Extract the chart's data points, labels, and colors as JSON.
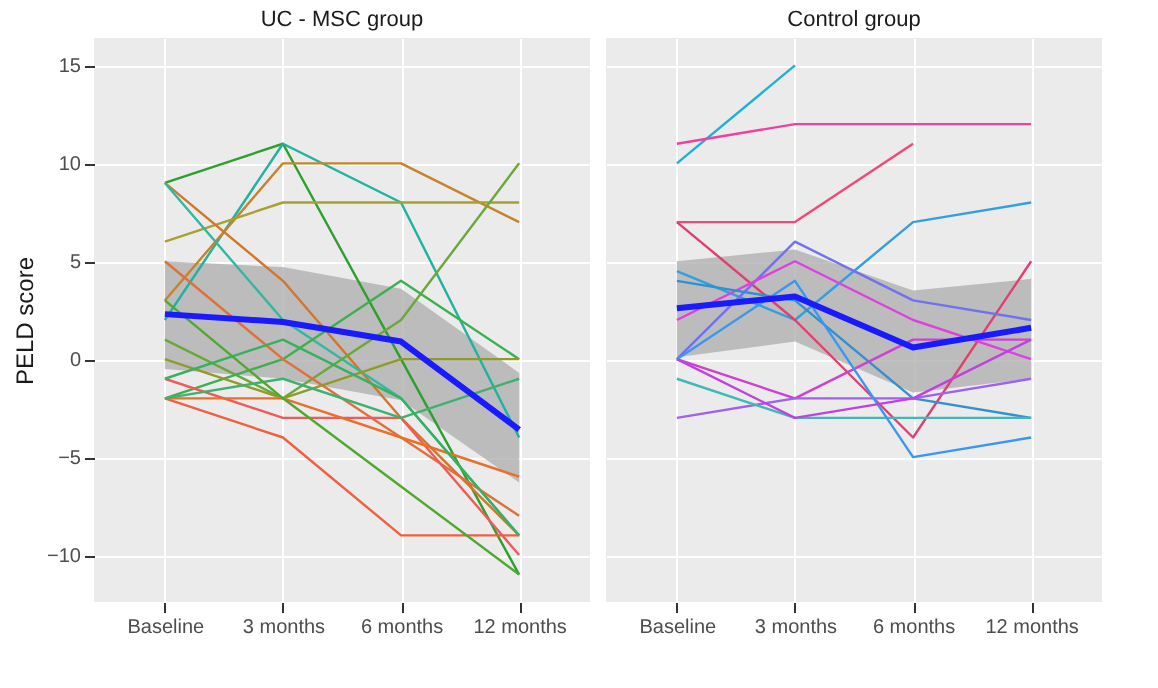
{
  "chart_data": [
    {
      "type": "line",
      "title": "UC - MSC group",
      "ylabel": "PELD score",
      "categories": [
        "Baseline",
        "3 months",
        "6 months",
        "12 months"
      ],
      "ylim": [
        -12.4,
        16.4
      ],
      "yticks": [
        -10,
        -5,
        0,
        5,
        10,
        15
      ],
      "grid": true,
      "series": [
        {
          "color": "#2ca02c",
          "values": [
            9,
            11,
            0,
            -11
          ]
        },
        {
          "color": "#20b2a0",
          "values": [
            2,
            11,
            8,
            -4
          ]
        },
        {
          "color": "#c8822a",
          "values": [
            3,
            10,
            10,
            7
          ]
        },
        {
          "color": "#a8a030",
          "values": [
            6,
            8,
            8,
            8
          ]
        },
        {
          "color": "#d2762a",
          "values": [
            9,
            4,
            -3,
            -9
          ]
        },
        {
          "color": "#30b8a0",
          "values": [
            9,
            2,
            -2,
            -9
          ]
        },
        {
          "color": "#6aa83a",
          "values": [
            1,
            -2,
            2,
            10
          ]
        },
        {
          "color": "#3cb050",
          "values": [
            -2,
            0,
            4,
            0
          ]
        },
        {
          "color": "#e0703a",
          "values": [
            5,
            0,
            -4,
            -8
          ]
        },
        {
          "color": "#909a2a",
          "values": [
            0,
            -2,
            0,
            0
          ]
        },
        {
          "color": "#f06040",
          "values": [
            -2,
            -4,
            -9,
            -9
          ]
        },
        {
          "color": "#f05a5a",
          "values": [
            -1,
            -3,
            -3,
            -10
          ]
        },
        {
          "color": "#e8702a",
          "values": [
            -2,
            -2,
            -4,
            -6
          ]
        },
        {
          "color": "#40b070",
          "values": [
            -2,
            -1,
            -3,
            -1
          ]
        },
        {
          "color": "#38b060",
          "values": [
            -1,
            1,
            -2,
            -9
          ]
        },
        {
          "color": "#50a830",
          "values": [
            3,
            -2,
            -6.5,
            -11
          ]
        },
        {
          "color": "#1a1aff",
          "values": [
            2.3,
            1.9,
            0.9,
            -3.6
          ],
          "lower": [
            -0.5,
            -1,
            -2.1,
            -6.3
          ],
          "upper": [
            5,
            4.7,
            3.6,
            -0.7
          ]
        }
      ]
    },
    {
      "type": "line",
      "title": "Control group",
      "categories": [
        "Baseline",
        "3 months",
        "6 months",
        "12 months"
      ],
      "ylim": [
        -12.4,
        16.4
      ],
      "yticks": [
        -10,
        -5,
        0,
        5,
        10,
        15
      ],
      "grid": true,
      "tick_labels": "x",
      "series": [
        {
          "color": "#20b0d8",
          "values": [
            10,
            15,
            null,
            null
          ]
        },
        {
          "color": "#f040a0",
          "values": [
            11,
            12,
            12,
            12
          ]
        },
        {
          "color": "#f04878",
          "values": [
            7,
            7,
            11,
            null
          ]
        },
        {
          "color": "#30a0e0",
          "values": [
            4.5,
            2,
            7,
            8
          ]
        },
        {
          "color": "#e04070",
          "values": [
            7,
            2,
            -4,
            5
          ]
        },
        {
          "color": "#7070f0",
          "values": [
            0,
            6,
            3,
            2
          ]
        },
        {
          "color": "#e040e0",
          "values": [
            2,
            5,
            2,
            0
          ]
        },
        {
          "color": "#3090d0",
          "values": [
            4,
            3,
            -2,
            -3
          ]
        },
        {
          "color": "#d040d0",
          "values": [
            0,
            -2,
            1,
            1
          ]
        },
        {
          "color": "#a060f0",
          "values": [
            -3,
            -2,
            -2,
            -1
          ]
        },
        {
          "color": "#40b8b8",
          "values": [
            -1,
            -3,
            -3,
            -3
          ]
        },
        {
          "color": "#3898f0",
          "values": [
            0,
            4,
            -5,
            -4
          ]
        },
        {
          "color": "#c040e0",
          "values": [
            0,
            -3,
            -2,
            1
          ]
        },
        {
          "color": "#1a1aff",
          "values": [
            2.6,
            3.2,
            0.6,
            1.6
          ],
          "lower": [
            0.1,
            0.9,
            -1.7,
            -1
          ],
          "upper": [
            5,
            5.6,
            3.5,
            4.1
          ]
        }
      ]
    }
  ]
}
